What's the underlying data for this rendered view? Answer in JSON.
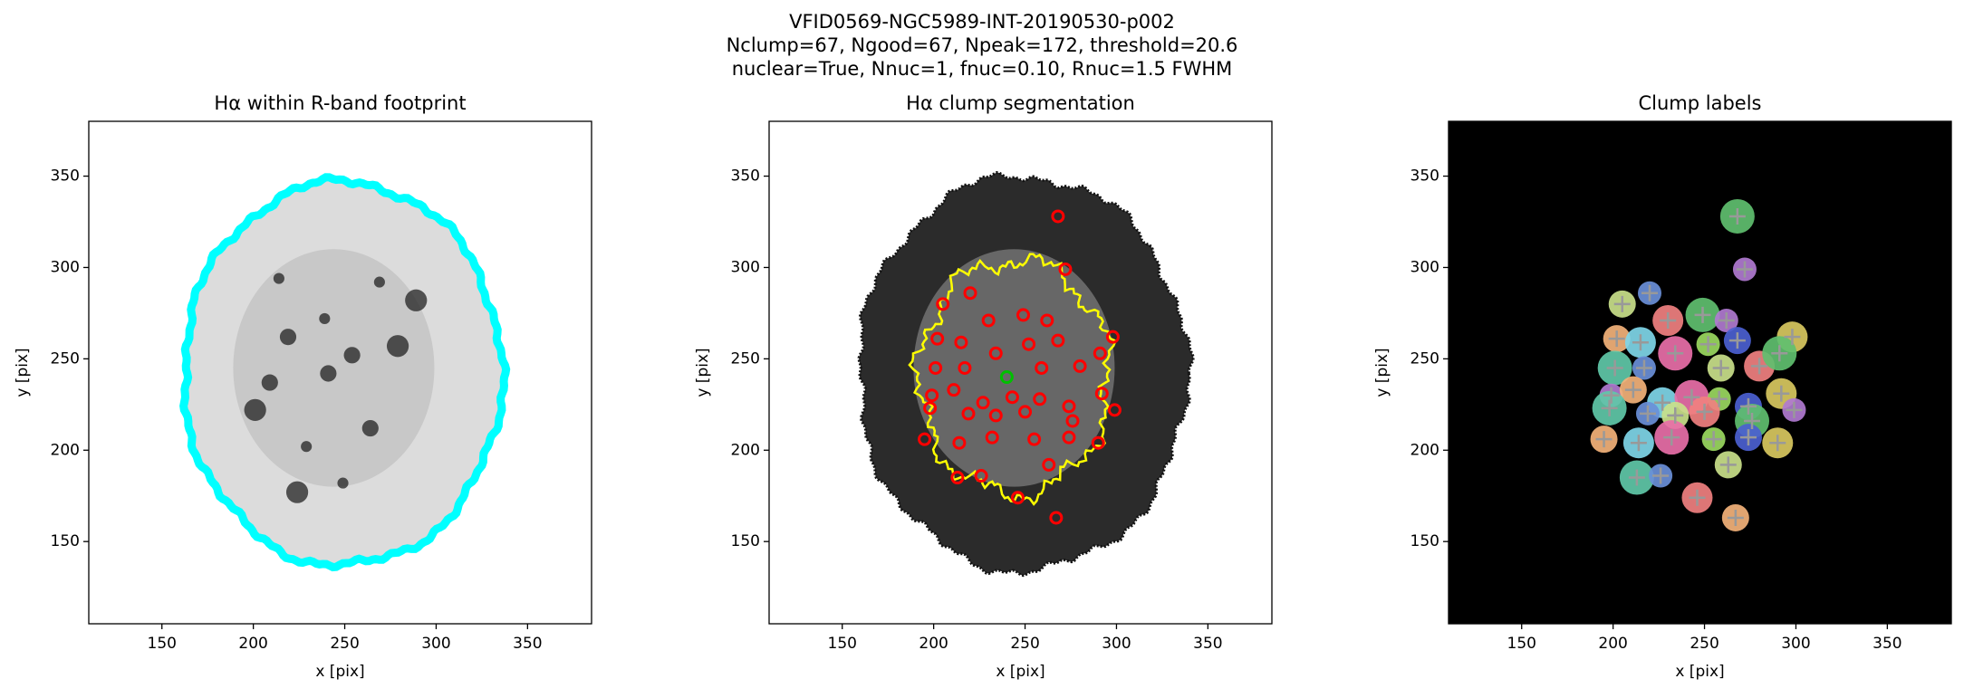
{
  "suptitle": [
    "VFID0569-NGC5989-INT-20190530-p002",
    "Nclump=67, Ngood=67, Npeak=172, threshold=20.6",
    "nuclear=True, Nnuc=1, fnuc=0.10, Rnuc=1.5 FWHM"
  ],
  "chart_data": [
    {
      "type": "image",
      "title": "Hα within R-band footprint",
      "xlabel": "x [pix]",
      "ylabel": "y [pix]",
      "xlim": [
        110,
        385
      ],
      "ylim": [
        105,
        380
      ],
      "xticks": [
        150,
        200,
        250,
        300,
        350
      ],
      "yticks": [
        150,
        200,
        250,
        300,
        350
      ],
      "background": "#ffffff",
      "contour_color": "#00ffff"
    },
    {
      "type": "image",
      "title": "Hα clump segmentation",
      "xlabel": "x [pix]",
      "ylabel": "y [pix]",
      "xlim": [
        110,
        385
      ],
      "ylim": [
        105,
        380
      ],
      "xticks": [
        150,
        200,
        250,
        300,
        350
      ],
      "yticks": [
        150,
        200,
        250,
        300,
        350
      ],
      "background": "#ffffff",
      "contour_color": "#ffff00",
      "series": [
        {
          "color": "#ff0000",
          "x": [
            220,
            205,
            230,
            249,
            262,
            202,
            215,
            234,
            252,
            268,
            298,
            201,
            217,
            259,
            280,
            291,
            199,
            211,
            227,
            243,
            258,
            274,
            292,
            198,
            219,
            234,
            250,
            276,
            299,
            195,
            214,
            232,
            255,
            274,
            290,
            213,
            226,
            263,
            246,
            268,
            272,
            267
          ],
          "y": [
            286,
            280,
            271,
            274,
            271,
            261,
            259,
            253,
            258,
            260,
            262,
            245,
            245,
            245,
            246,
            253,
            230,
            233,
            226,
            229,
            228,
            224,
            231,
            223,
            220,
            219,
            221,
            216,
            222,
            206,
            204,
            207,
            206,
            207,
            204,
            185,
            186,
            192,
            174,
            328,
            299,
            163
          ]
        },
        {
          "color": "#00c000",
          "x": [
            240
          ],
          "y": [
            240
          ]
        }
      ]
    },
    {
      "type": "image",
      "title": "Clump labels",
      "xlabel": "x [pix]",
      "ylabel": "y [pix]",
      "xlim": [
        110,
        385
      ],
      "ylim": [
        105,
        380
      ],
      "xticks": [
        150,
        200,
        250,
        300,
        350
      ],
      "yticks": [
        150,
        200,
        250,
        300,
        350
      ],
      "background": "#000000",
      "label_colors": [
        "#6a8fd8",
        "#c9e08a",
        "#f08080",
        "#5fbf6f",
        "#b07ad0",
        "#f3b27a",
        "#7fd6e8",
        "#e86fa8",
        "#9ad85f",
        "#4b5fd0",
        "#d8c860",
        "#60c8a8"
      ],
      "series": [
        {
          "color": "#999999",
          "x": [
            220,
            205,
            230,
            249,
            262,
            202,
            215,
            234,
            252,
            268,
            298,
            201,
            217,
            259,
            280,
            291,
            199,
            211,
            227,
            243,
            258,
            274,
            292,
            198,
            219,
            234,
            250,
            276,
            299,
            195,
            214,
            232,
            255,
            274,
            290,
            213,
            226,
            263,
            246,
            268,
            272,
            267
          ],
          "y": [
            286,
            280,
            271,
            274,
            271,
            261,
            259,
            253,
            258,
            260,
            262,
            245,
            245,
            245,
            246,
            253,
            230,
            233,
            226,
            229,
            228,
            224,
            231,
            223,
            220,
            219,
            221,
            216,
            222,
            206,
            204,
            207,
            206,
            207,
            204,
            185,
            186,
            192,
            174,
            328,
            299,
            163
          ]
        }
      ]
    }
  ]
}
